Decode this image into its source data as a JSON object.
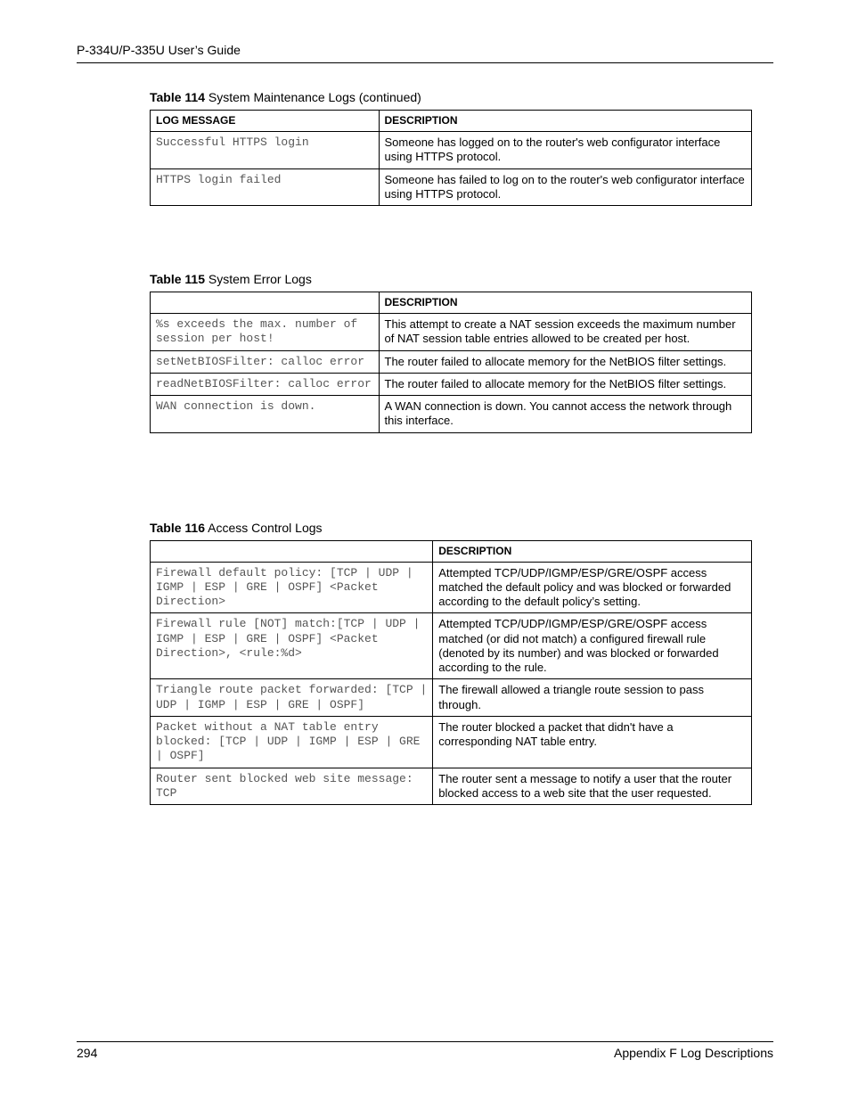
{
  "header": {
    "title": "P-334U/P-335U User’s Guide"
  },
  "table114": {
    "caption_bold": "Table 114",
    "caption_rest": "   System Maintenance Logs (continued)",
    "headers": {
      "c1": "LOG MESSAGE",
      "c2": "DESCRIPTION"
    },
    "rows": [
      {
        "msg": "Successful HTTPS login",
        "desc": "Someone has logged on to the router's web configurator interface using HTTPS protocol."
      },
      {
        "msg": "HTTPS login failed",
        "desc": "Someone has failed to log on to the router's web configurator interface using HTTPS protocol."
      }
    ],
    "col_widths": {
      "c1": "38%",
      "c2": "62%"
    }
  },
  "table115": {
    "caption_bold": "Table 115",
    "caption_rest": "   System Error Logs",
    "headers": {
      "c1": "",
      "c2": "DESCRIPTION"
    },
    "rows": [
      {
        "msg": "%s exceeds the max. number of session per host!",
        "desc": "This attempt to create a NAT session exceeds the maximum number of NAT session table entries allowed to be created per host."
      },
      {
        "msg": "setNetBIOSFilter: calloc error",
        "desc": "The router failed to allocate memory for the NetBIOS filter settings."
      },
      {
        "msg": "readNetBIOSFilter: calloc error",
        "desc": "The router failed to allocate memory for the NetBIOS filter settings."
      },
      {
        "msg": "WAN connection is down.",
        "desc": "A WAN connection is down. You cannot access the network through this interface."
      }
    ],
    "col_widths": {
      "c1": "38%",
      "c2": "62%"
    }
  },
  "table116": {
    "caption_bold": "Table 116",
    "caption_rest": "   Access Control Logs",
    "headers": {
      "c1": "",
      "c2": "DESCRIPTION"
    },
    "rows": [
      {
        "msg": "Firewall default policy: [TCP | UDP | IGMP | ESP | GRE | OSPF] <Packet Direction>",
        "desc": "Attempted TCP/UDP/IGMP/ESP/GRE/OSPF access matched the default policy and was blocked or forwarded according to the default policy’s setting."
      },
      {
        "msg": "Firewall rule [NOT] match:[TCP | UDP | IGMP | ESP | GRE | OSPF] <Packet Direction>, <rule:%d>",
        "desc": "Attempted TCP/UDP/IGMP/ESP/GRE/OSPF access matched (or did not match) a configured firewall rule (denoted by its number) and was blocked or forwarded according to the rule."
      },
      {
        "msg": "Triangle route packet forwarded: [TCP | UDP | IGMP | ESP | GRE | OSPF]",
        "desc": "The firewall allowed a triangle route session to pass through."
      },
      {
        "msg": "Packet without a NAT table entry blocked: [TCP | UDP | IGMP | ESP | GRE | OSPF]",
        "desc": "The router blocked a packet that didn't have a corresponding NAT table entry."
      },
      {
        "msg": "Router sent blocked web site message: TCP",
        "desc": "The router sent a message to notify a user that the router blocked access to a web site that the user requested."
      }
    ],
    "col_widths": {
      "c1": "47%",
      "c2": "53%"
    }
  },
  "footer": {
    "page": "294",
    "section": "Appendix F Log Descriptions"
  }
}
